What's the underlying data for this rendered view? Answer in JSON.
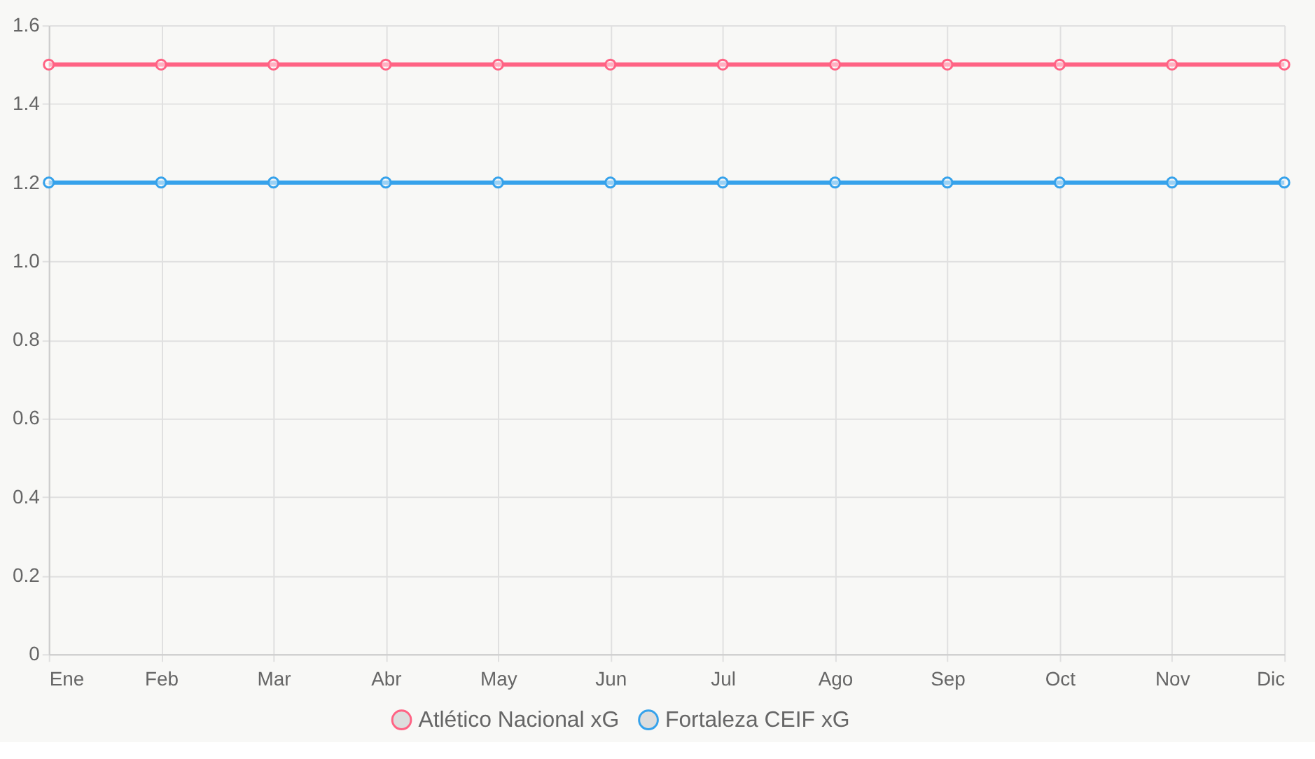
{
  "chart_data": {
    "type": "line",
    "categories": [
      "Ene",
      "Feb",
      "Mar",
      "Abr",
      "May",
      "Jun",
      "Jul",
      "Ago",
      "Sep",
      "Oct",
      "Nov",
      "Dic"
    ],
    "series": [
      {
        "name": "Atlético Nacional xG",
        "color": "#ff6384",
        "values": [
          1.5,
          1.5,
          1.5,
          1.5,
          1.5,
          1.5,
          1.5,
          1.5,
          1.5,
          1.5,
          1.5,
          1.5
        ]
      },
      {
        "name": "Fortaleza CEIF xG",
        "color": "#36a2eb",
        "values": [
          1.2,
          1.2,
          1.2,
          1.2,
          1.2,
          1.2,
          1.2,
          1.2,
          1.2,
          1.2,
          1.2,
          1.2
        ]
      }
    ],
    "ylim": [
      0,
      1.6
    ],
    "yticks": [
      0,
      0.2,
      0.4,
      0.6,
      0.8,
      {
        "value": 1,
        "label": "1.0"
      },
      1.2,
      1.4,
      1.6
    ],
    "grid": true,
    "legend": "bottom",
    "marker": "circle",
    "line_style": "solid"
  }
}
